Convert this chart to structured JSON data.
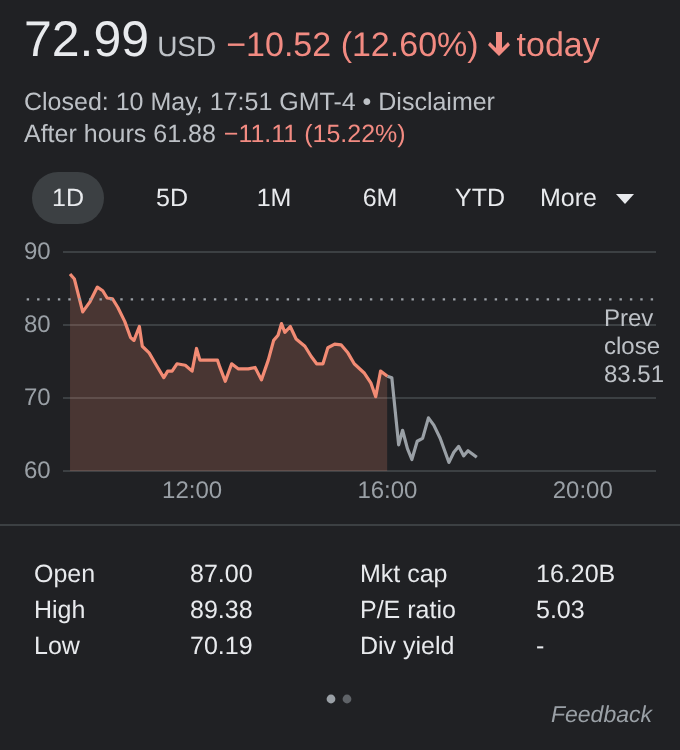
{
  "chart_data": {
    "type": "area",
    "title": "72.99",
    "subtitle": "Closed: 10 May, 17:51 GMT-4 • Disclaimer",
    "annotations": [
      "USD",
      "−10.52 (12.60%)",
      "today",
      "After hours 61.88",
      "−11.11 (15.22%)",
      "1D",
      "5D",
      "1M",
      "6M",
      "YTD",
      "More",
      "Open",
      "87.00",
      "High",
      "89.38",
      "Low",
      "70.19",
      "Mkt cap",
      "16.20B",
      "P/E ratio",
      "5.03",
      "Div yield",
      "-",
      "Feedback"
    ],
    "xlim": [
      9.35,
      21.5
    ],
    "xticks": [
      {
        "value": 12,
        "label": "12:00"
      },
      {
        "value": 16,
        "label": "16:00"
      },
      {
        "value": 20,
        "label": "20:00"
      }
    ],
    "ylim": [
      60,
      90
    ],
    "yticks": [
      60,
      70,
      80,
      90
    ],
    "grid": "y",
    "ref_lines": [
      {
        "axis": "y",
        "value": 83.51,
        "label": "Prev close 83.51",
        "color": "#9aa0a6",
        "line_style": "dotted"
      }
    ],
    "series": [
      {
        "color": "#f28b74",
        "x": [
          9.5,
          9.59,
          9.76,
          9.9,
          10.06,
          10.17,
          10.26,
          10.37,
          10.48,
          10.62,
          10.74,
          10.81,
          10.92,
          10.98,
          11.12,
          11.25,
          11.42,
          11.5,
          11.59,
          11.69,
          11.86,
          12.0,
          12.09,
          12.16,
          12.34,
          12.52,
          12.57,
          12.68,
          12.81,
          12.95,
          13.15,
          13.29,
          13.42,
          13.56,
          13.67,
          13.76,
          13.83,
          13.9,
          14.01,
          14.13,
          14.31,
          14.44,
          14.55,
          14.68,
          14.78,
          14.92,
          15.05,
          15.19,
          15.32,
          15.53,
          15.66,
          15.76,
          15.86,
          16.0
        ],
        "values": [
          87.0,
          86.3,
          81.8,
          83.1,
          85.2,
          84.7,
          83.7,
          83.6,
          82.4,
          80.5,
          78.3,
          77.9,
          79.8,
          77.1,
          76.2,
          74.7,
          72.8,
          73.7,
          73.7,
          74.7,
          74.5,
          73.7,
          76.8,
          75.2,
          75.2,
          75.2,
          74.2,
          72.3,
          74.7,
          74.0,
          74.0,
          74.2,
          72.5,
          75.2,
          77.9,
          78.6,
          80.2,
          79.0,
          79.8,
          78.1,
          77.1,
          75.7,
          74.7,
          74.7,
          76.9,
          77.4,
          77.3,
          76.2,
          74.7,
          73.4,
          72.1,
          70.2,
          73.7,
          73.0
        ]
      },
      {
        "type": "line",
        "color": "#9aa0a6",
        "x": [
          16.0,
          16.09,
          16.23,
          16.31,
          16.41,
          16.5,
          16.61,
          16.72,
          16.84,
          16.95,
          17.08,
          17.26,
          17.36,
          17.46,
          17.56,
          17.65,
          17.83
        ],
        "values": [
          73.0,
          72.8,
          63.6,
          65.6,
          63.1,
          61.6,
          64.1,
          64.5,
          67.3,
          66.3,
          64.5,
          61.2,
          62.6,
          63.4,
          62.1,
          62.8,
          61.9
        ]
      }
    ]
  }
}
